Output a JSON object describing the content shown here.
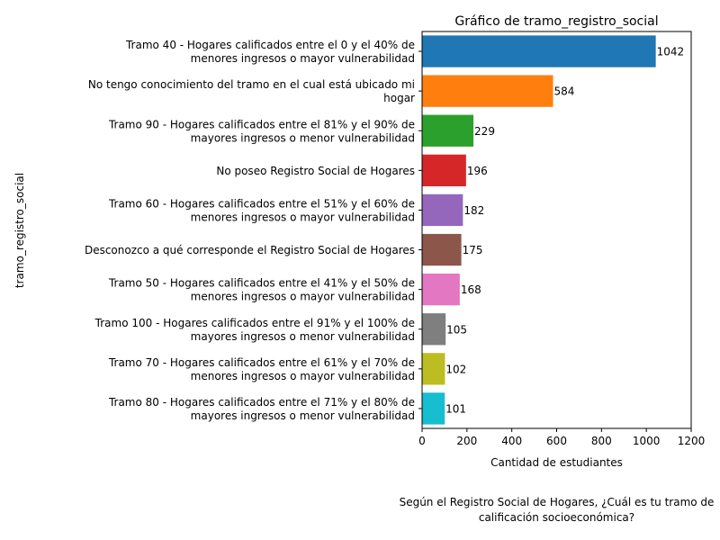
{
  "chart_data": {
    "type": "bar",
    "orientation": "horizontal",
    "title": "Gráfico de tramo_registro_social",
    "xlabel": "Cantidad de estudiantes",
    "ylabel": "tramo_registro_social",
    "caption": [
      "Según el Registro Social de Hogares, ¿Cuál es tu tramo de",
      "calificación socioeconómica?"
    ],
    "xlim": [
      0,
      1200
    ],
    "xticks": [
      0,
      200,
      400,
      600,
      800,
      1000,
      1200
    ],
    "grid": false,
    "legend": "none",
    "categories": [
      [
        "Tramo 40 - Hogares calificados entre el 0 y el 40% de",
        "menores ingresos o mayor vulnerabilidad"
      ],
      [
        "No tengo conocimiento del tramo en el cual está ubicado mi",
        "hogar"
      ],
      [
        "Tramo 90 - Hogares calificados entre el 81% y el 90% de",
        "mayores ingresos o menor vulnerabilidad"
      ],
      [
        "No poseo Registro Social de Hogares"
      ],
      [
        "Tramo 60 - Hogares calificados entre el 51% y el 60% de",
        "menores ingresos o mayor vulnerabilidad"
      ],
      [
        "Desconozco a qué corresponde el Registro Social de Hogares"
      ],
      [
        "Tramo 50 - Hogares calificados entre el 41% y el 50% de",
        "menores ingresos o mayor vulnerabilidad"
      ],
      [
        "Tramo 100 - Hogares calificados entre el 91% y el 100% de",
        "mayores ingresos o menor vulnerabilidad"
      ],
      [
        "Tramo 70 - Hogares calificados entre el 61% y el 70% de",
        "menores ingresos o mayor vulnerabilidad"
      ],
      [
        "Tramo 80 - Hogares calificados entre el 71% y el 80% de",
        "mayores ingresos o menor vulnerabilidad"
      ]
    ],
    "values": [
      1042,
      584,
      229,
      196,
      182,
      175,
      168,
      105,
      102,
      101
    ],
    "colors": [
      "#1f77b4",
      "#ff7f0e",
      "#2ca02c",
      "#d62728",
      "#9467bd",
      "#8c564b",
      "#e377c2",
      "#7f7f7f",
      "#bcbd22",
      "#17becf"
    ]
  }
}
